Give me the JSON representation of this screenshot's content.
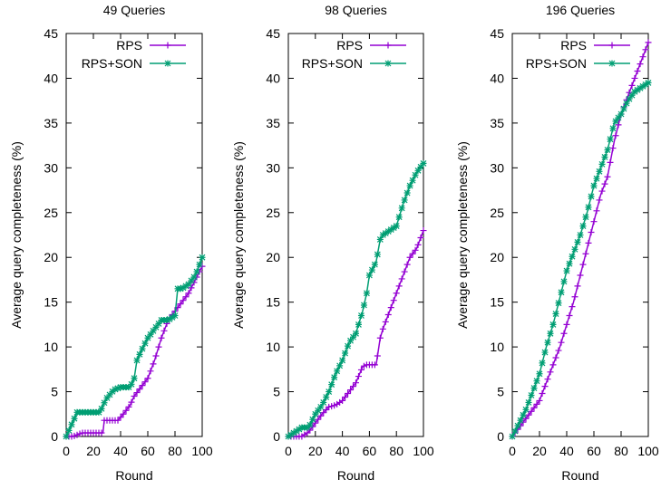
{
  "colors": {
    "rps": "#9400d3",
    "rps_son": "#009e73",
    "axis": "#000000"
  },
  "chart_data": [
    {
      "type": "line",
      "title": "49 Queries",
      "xlabel": "Round",
      "ylabel": "Average query completeness (%)",
      "xlim": [
        0,
        100
      ],
      "ylim": [
        0,
        45
      ],
      "xticks": [
        0,
        20,
        40,
        60,
        80,
        100
      ],
      "yticks": [
        0,
        5,
        10,
        15,
        20,
        25,
        30,
        35,
        40,
        45
      ],
      "legend": "top-left",
      "series": [
        {
          "name": "RPS",
          "color": "#9400d3",
          "x": [
            0,
            5,
            10,
            12,
            27,
            28,
            38,
            42,
            47,
            50,
            55,
            60,
            65,
            70,
            75,
            80,
            85,
            90,
            95,
            100
          ],
          "y": [
            0,
            0,
            0.3,
            0.4,
            0.4,
            1.8,
            1.8,
            2.5,
            3.5,
            4.5,
            5.5,
            6.5,
            8.5,
            11,
            13,
            14,
            15,
            16,
            17.5,
            19
          ]
        },
        {
          "name": "RPS+SON",
          "color": "#009e73",
          "x": [
            0,
            3,
            6,
            8,
            25,
            27,
            30,
            35,
            40,
            47,
            50,
            52,
            55,
            60,
            65,
            70,
            75,
            80,
            82,
            85,
            90,
            95,
            100
          ],
          "y": [
            0,
            1,
            2,
            2.7,
            2.7,
            3.5,
            4.3,
            5.2,
            5.5,
            5.5,
            6.5,
            8.5,
            9.5,
            11,
            12,
            13,
            13,
            13.5,
            16.5,
            16.5,
            17,
            18,
            20
          ]
        }
      ]
    },
    {
      "type": "line",
      "title": "98 Queries",
      "xlabel": "Round",
      "ylabel": "Average query completeness (%)",
      "xlim": [
        0,
        100
      ],
      "ylim": [
        0,
        45
      ],
      "xticks": [
        0,
        20,
        40,
        60,
        80,
        100
      ],
      "yticks": [
        0,
        5,
        10,
        15,
        20,
        25,
        30,
        35,
        40,
        45
      ],
      "legend": "top-right",
      "series": [
        {
          "name": "RPS",
          "color": "#9400d3",
          "x": [
            0,
            10,
            15,
            20,
            25,
            30,
            35,
            40,
            45,
            50,
            55,
            58,
            65,
            68,
            70,
            75,
            80,
            85,
            90,
            95,
            100
          ],
          "y": [
            0,
            0,
            0.5,
            1.5,
            2.5,
            3.3,
            3.5,
            4,
            5,
            6,
            7.8,
            8,
            8,
            11,
            12,
            14,
            16,
            18,
            20,
            21,
            23
          ]
        },
        {
          "name": "RPS+SON",
          "color": "#009e73",
          "x": [
            0,
            5,
            10,
            15,
            20,
            25,
            30,
            35,
            40,
            45,
            50,
            55,
            58,
            60,
            65,
            68,
            70,
            75,
            80,
            85,
            90,
            95,
            100
          ],
          "y": [
            0,
            0.5,
            1,
            1,
            2.5,
            3.5,
            5,
            7,
            8.5,
            10.5,
            11.5,
            14,
            16,
            18,
            19.5,
            22,
            22.5,
            23,
            23.5,
            26,
            28,
            29.5,
            30.5
          ]
        }
      ]
    },
    {
      "type": "line",
      "title": "196 Queries",
      "xlabel": "Round",
      "ylabel": "Average query completeness (%)",
      "xlim": [
        0,
        100
      ],
      "ylim": [
        0,
        45
      ],
      "xticks": [
        0,
        20,
        40,
        60,
        80,
        100
      ],
      "yticks": [
        0,
        5,
        10,
        15,
        20,
        25,
        30,
        35,
        40,
        45
      ],
      "legend": "top-right",
      "series": [
        {
          "name": "RPS",
          "color": "#9400d3",
          "x": [
            0,
            5,
            10,
            15,
            20,
            25,
            30,
            35,
            40,
            45,
            50,
            55,
            60,
            65,
            70,
            75,
            80,
            85,
            90,
            95,
            100
          ],
          "y": [
            0,
            1,
            2,
            3,
            4,
            6,
            8,
            10,
            12.5,
            15,
            18,
            21,
            24,
            27,
            29,
            33,
            36,
            38,
            40,
            42,
            44
          ]
        },
        {
          "name": "RPS+SON",
          "color": "#009e73",
          "x": [
            0,
            5,
            10,
            15,
            20,
            25,
            30,
            35,
            40,
            45,
            50,
            55,
            60,
            65,
            70,
            75,
            80,
            85,
            90,
            95,
            100
          ],
          "y": [
            0,
            1.5,
            3,
            5,
            7,
            10,
            12.5,
            15.5,
            18.5,
            20.5,
            22.5,
            25,
            28,
            30,
            32,
            35,
            36,
            37.5,
            38.5,
            39,
            39.5
          ]
        }
      ]
    }
  ]
}
